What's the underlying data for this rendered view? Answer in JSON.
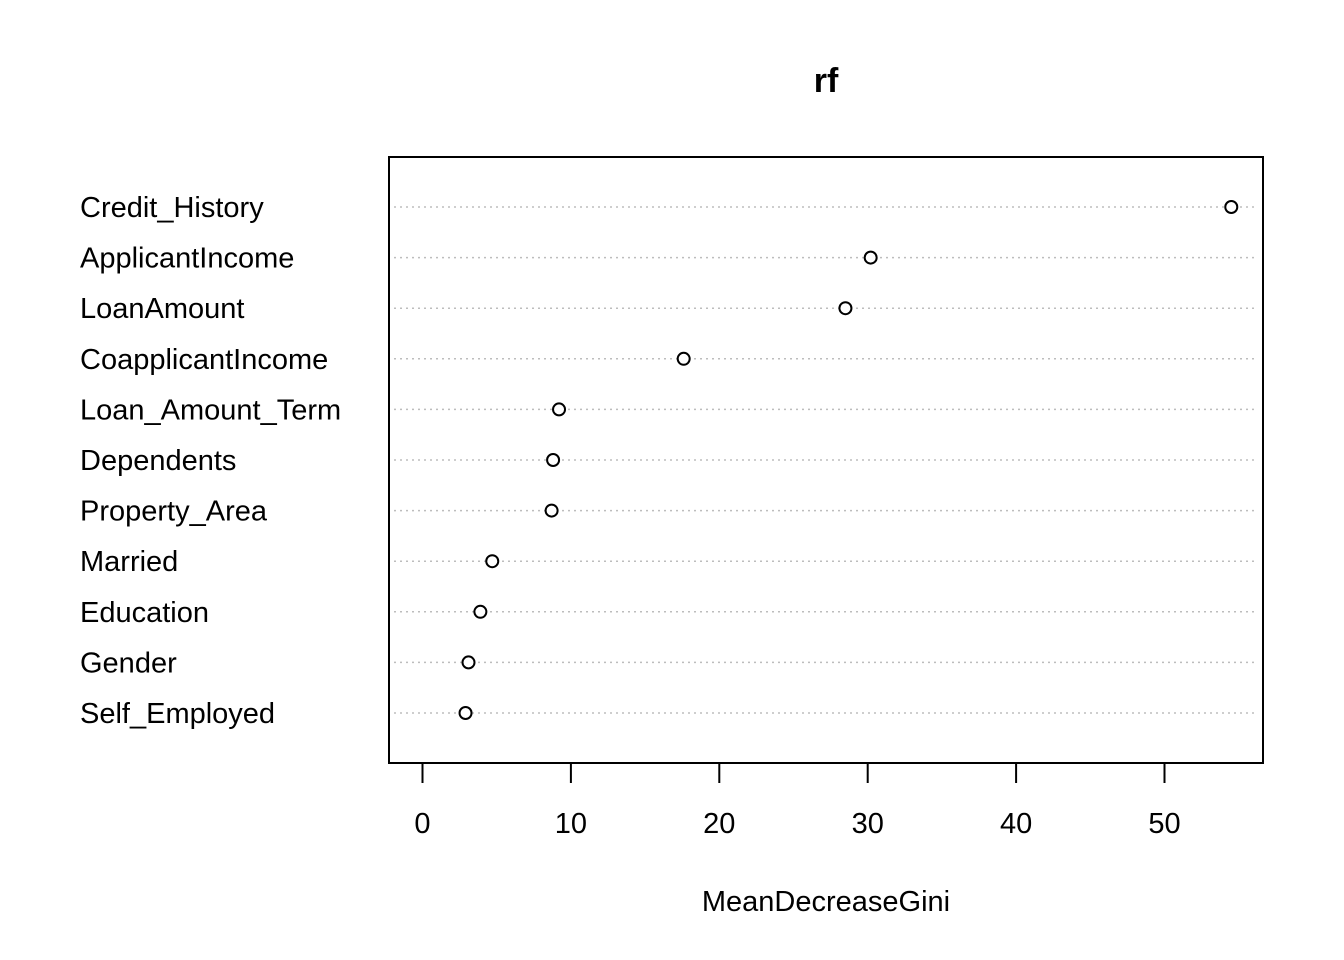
{
  "chart_data": {
    "type": "scatter",
    "subtype": "dotchart",
    "title": "rf",
    "xlabel": "MeanDecreaseGini",
    "ylabel": "",
    "xlim": [
      0,
      56
    ],
    "xticks": [
      0,
      10,
      20,
      30,
      40,
      50
    ],
    "grid": "horizontal-dotted",
    "categories": [
      "Credit_History",
      "ApplicantIncome",
      "LoanAmount",
      "CoapplicantIncome",
      "Loan_Amount_Term",
      "Dependents",
      "Property_Area",
      "Married",
      "Education",
      "Gender",
      "Self_Employed"
    ],
    "values": [
      54.5,
      30.2,
      28.5,
      17.6,
      9.2,
      8.8,
      8.7,
      4.7,
      3.9,
      3.1,
      2.9
    ]
  }
}
